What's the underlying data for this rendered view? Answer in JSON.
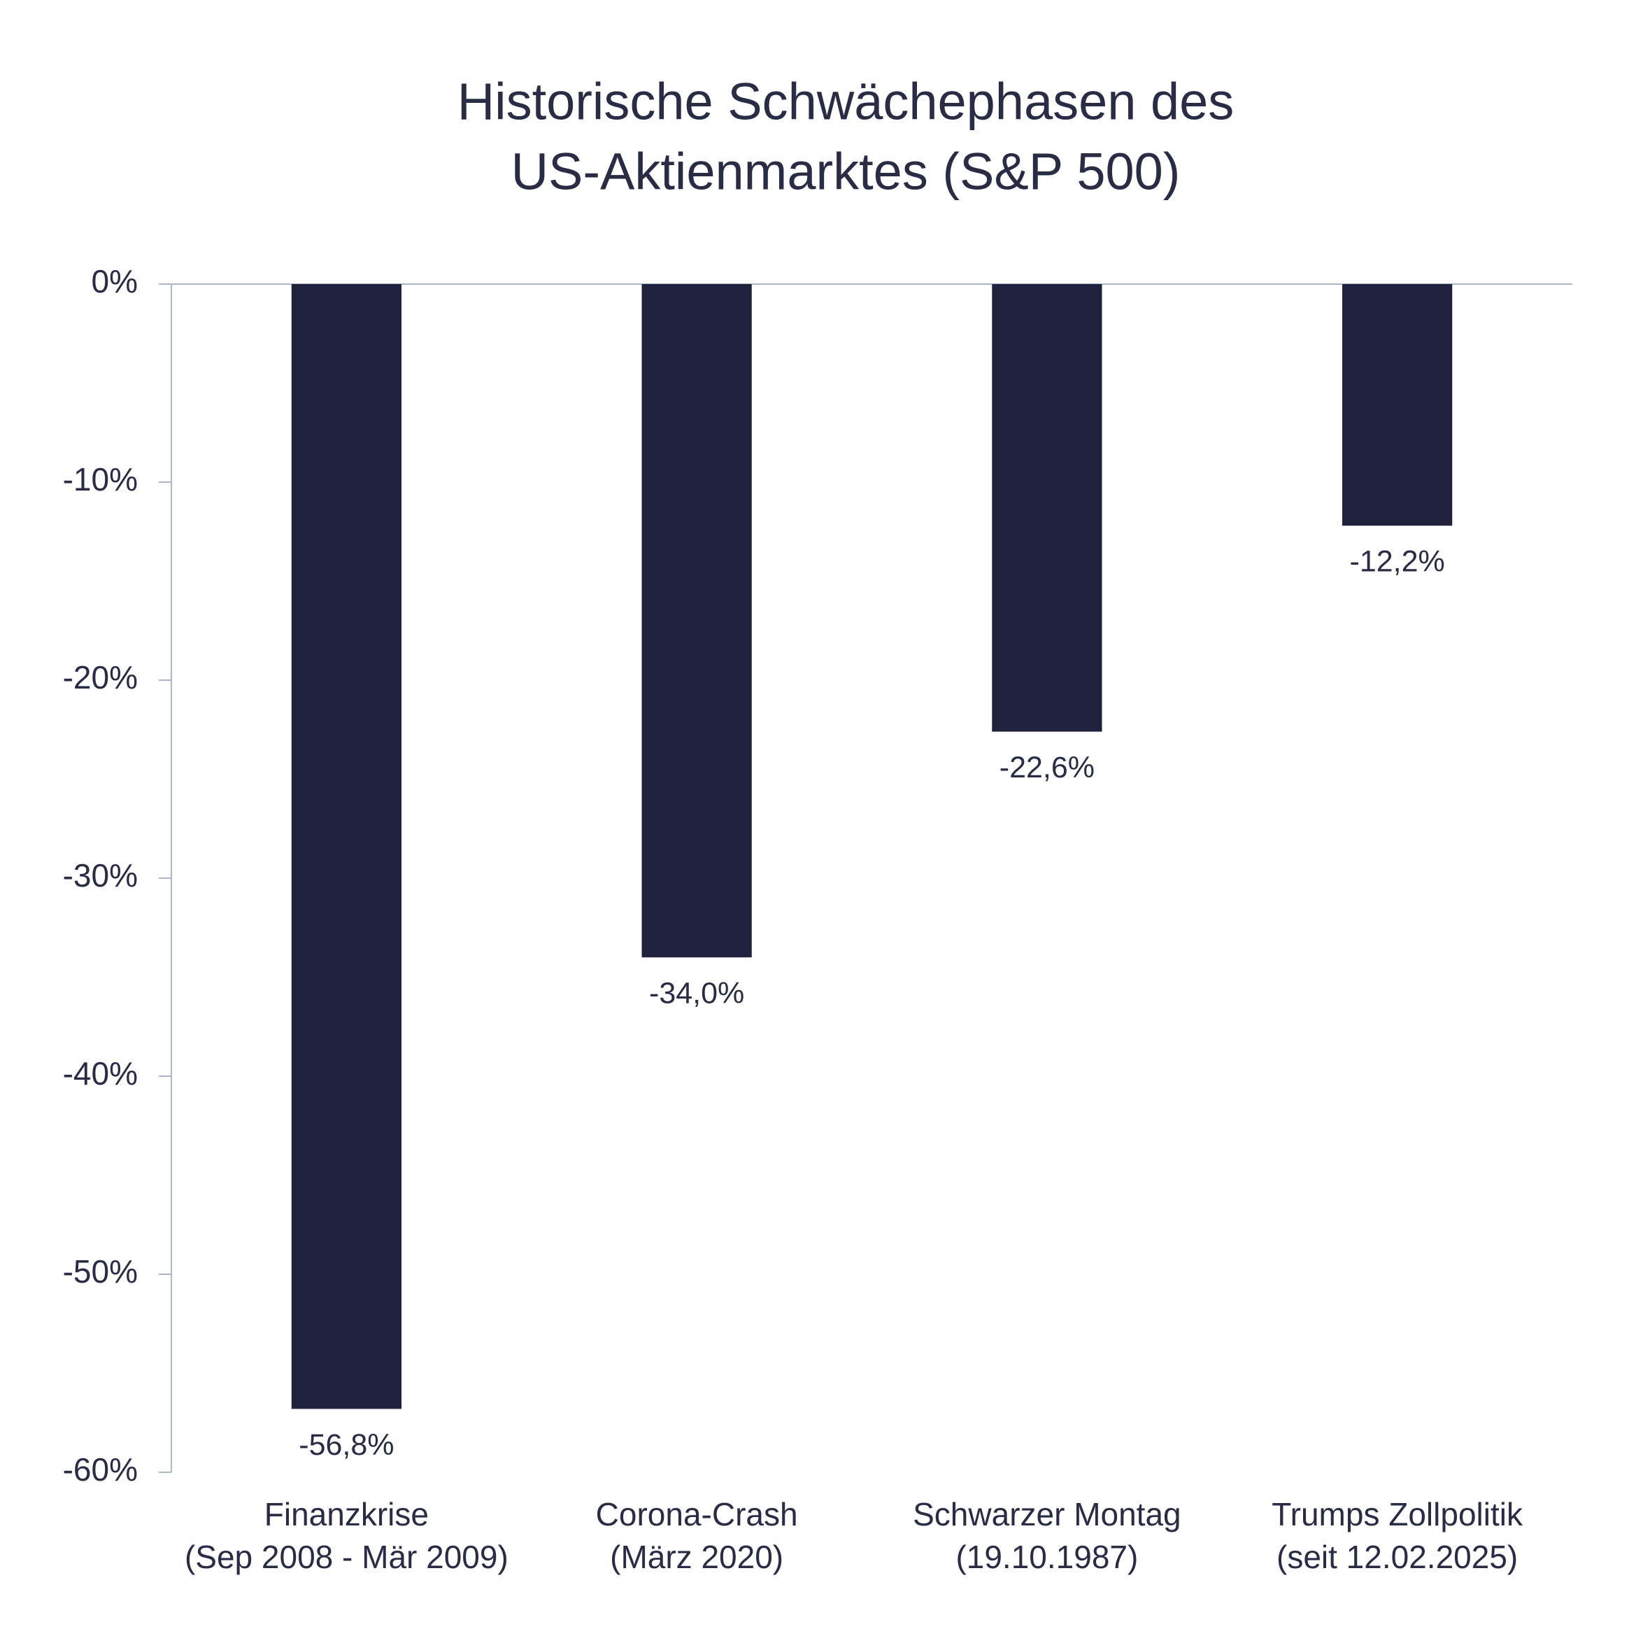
{
  "chart_data": {
    "type": "bar",
    "title": [
      "Historische Schwächephasen des",
      "US-Aktienmarktes (S&P 500)"
    ],
    "categories": [
      [
        "Finanzkrise",
        "(Sep 2008 - Mär 2009)"
      ],
      [
        "Corona-Crash",
        "(März 2020)"
      ],
      [
        "Schwarzer Montag",
        "(19.10.1987)"
      ],
      [
        "Trumps Zollpolitik",
        "(seit 12.02.2025)"
      ]
    ],
    "values": [
      -56.8,
      -34.0,
      -22.6,
      -12.2
    ],
    "value_labels": [
      "-56,8%",
      "-34,0%",
      "-22,6%",
      "-12,2%"
    ],
    "color": "#20213d",
    "ylim": [
      -60,
      0
    ],
    "yticks": [
      {
        "value": 0,
        "label": "0%"
      },
      {
        "value": -10,
        "label": "-10%"
      },
      {
        "value": -20,
        "label": "-20%"
      },
      {
        "value": -30,
        "label": "-30%"
      },
      {
        "value": -40,
        "label": "-40%"
      },
      {
        "value": -50,
        "label": "-50%"
      },
      {
        "value": -60,
        "label": "-60%"
      }
    ],
    "grid": false
  }
}
